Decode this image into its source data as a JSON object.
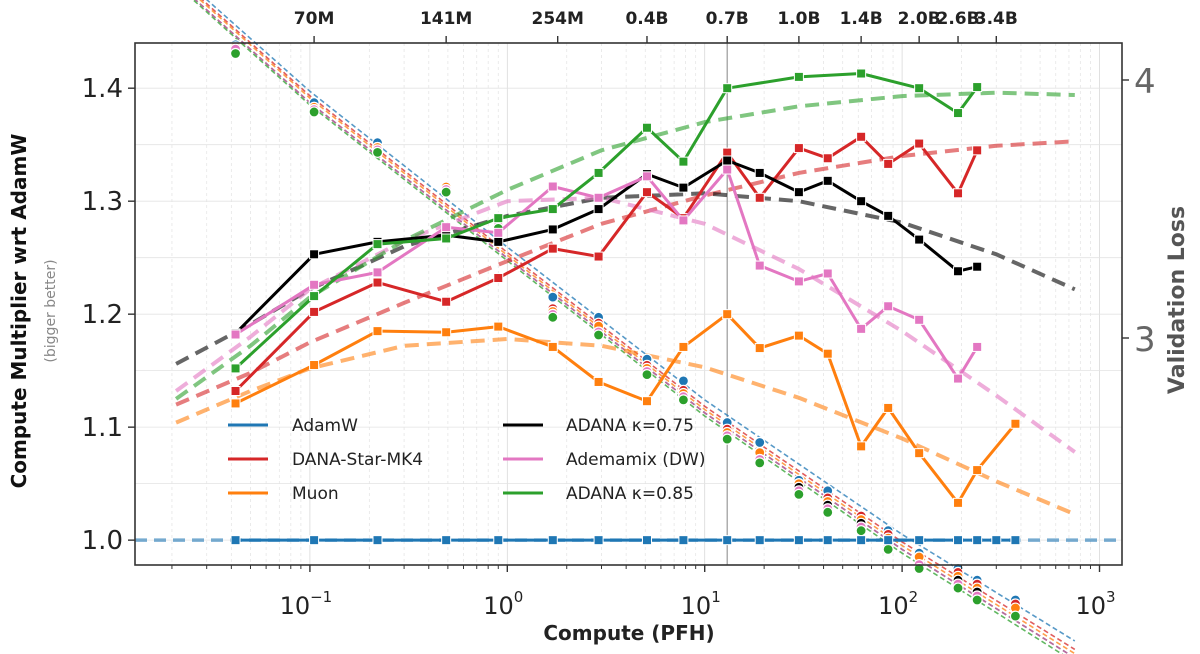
{
  "chart_data": {
    "type": "line",
    "x_scale": "log",
    "xlim": [
      0.013,
      1300
    ],
    "ylim_left": [
      0.978,
      1.44
    ],
    "ylim_right_desc": "log-scale validation loss, ticks 3 and 4",
    "xlabel": "Compute (PFH)",
    "ylabel_left": "Compute Multiplier wrt AdamW",
    "ylabel_left_sub": "(bigger better)",
    "ylabel_right": "Validation Loss",
    "x_ticks": [
      {
        "value": 0.1,
        "base": "10",
        "exp": "−1"
      },
      {
        "value": 1,
        "base": "10",
        "exp": "0"
      },
      {
        "value": 10,
        "base": "10",
        "exp": "1"
      },
      {
        "value": 100,
        "base": "10",
        "exp": "2"
      },
      {
        "value": 1000,
        "base": "10",
        "exp": "3"
      }
    ],
    "y_ticks_left": [
      "1.0",
      "1.1",
      "1.2",
      "1.3",
      "1.4"
    ],
    "y_ticks_right": [
      {
        "value": 3,
        "label": "3"
      },
      {
        "value": 4,
        "label": "4"
      }
    ],
    "top_axis_ticks": [
      {
        "x": 0.105,
        "label": "70M"
      },
      {
        "x": 0.49,
        "label": "141M"
      },
      {
        "x": 1.8,
        "label": "254M"
      },
      {
        "x": 5.1,
        "label": "0.4B"
      },
      {
        "x": 13,
        "label": "0.7B"
      },
      {
        "x": 30,
        "label": "1.0B"
      },
      {
        "x": 62,
        "label": "1.4B"
      },
      {
        "x": 122,
        "label": "2.0B"
      },
      {
        "x": 192,
        "label": "2.6B"
      },
      {
        "x": 300,
        "label": "3.4B"
      }
    ],
    "vline_x": 13,
    "hline_y": 1.0,
    "multiplier_series": [
      {
        "name": "AdamW",
        "color": "#1f77b4",
        "x": [
          0.042,
          0.105,
          0.22,
          0.49,
          0.9,
          1.7,
          2.9,
          5.1,
          7.8,
          13,
          19,
          30,
          42,
          62,
          85,
          122,
          192,
          240,
          300,
          375
        ],
        "y": [
          1.0,
          1.0,
          1.0,
          1.0,
          1.0,
          1.0,
          1.0,
          1.0,
          1.0,
          1.0,
          1.0,
          1.0,
          1.0,
          1.0,
          1.0,
          1.0,
          1.0,
          1.0,
          1.0,
          1.0
        ]
      },
      {
        "name": "DANA-Star-MK4",
        "color": "#d62728",
        "x": [
          0.042,
          0.105,
          0.22,
          0.49,
          0.9,
          1.7,
          2.9,
          5.1,
          7.8,
          13,
          19,
          30,
          42,
          62,
          85,
          122,
          192,
          240
        ],
        "y": [
          1.132,
          1.202,
          1.228,
          1.211,
          1.232,
          1.258,
          1.251,
          1.308,
          1.285,
          1.343,
          1.303,
          1.347,
          1.338,
          1.357,
          1.333,
          1.351,
          1.307,
          1.345
        ]
      },
      {
        "name": "Muon",
        "color": "#ff7f0e",
        "x": [
          0.042,
          0.105,
          0.22,
          0.49,
          0.9,
          1.7,
          2.9,
          5.1,
          7.8,
          13,
          19,
          30,
          42,
          62,
          85,
          122,
          192,
          240,
          375
        ],
        "y": [
          1.121,
          1.155,
          1.185,
          1.184,
          1.189,
          1.171,
          1.14,
          1.123,
          1.171,
          1.2,
          1.17,
          1.181,
          1.165,
          1.083,
          1.117,
          1.077,
          1.033,
          1.062,
          1.103
        ]
      },
      {
        "name": "ADANA κ=0.75",
        "color": "#000000",
        "x": [
          0.042,
          0.105,
          0.22,
          0.49,
          0.9,
          1.7,
          2.9,
          5.1,
          7.8,
          13,
          19,
          30,
          42,
          62,
          85,
          122,
          192,
          240
        ],
        "y": [
          1.183,
          1.253,
          1.264,
          1.27,
          1.264,
          1.275,
          1.293,
          1.324,
          1.312,
          1.336,
          1.325,
          1.308,
          1.318,
          1.3,
          1.287,
          1.266,
          1.238,
          1.242
        ]
      },
      {
        "name": "Ademamix (DW)",
        "color": "#e377c2",
        "x": [
          0.042,
          0.105,
          0.22,
          0.49,
          0.9,
          1.7,
          2.9,
          5.1,
          7.8,
          13,
          19,
          30,
          42,
          62,
          85,
          122,
          192,
          240
        ],
        "y": [
          1.182,
          1.226,
          1.237,
          1.277,
          1.272,
          1.313,
          1.303,
          1.322,
          1.283,
          1.328,
          1.243,
          1.229,
          1.236,
          1.187,
          1.207,
          1.195,
          1.143,
          1.171
        ]
      },
      {
        "name": "ADANA κ=0.85",
        "color": "#2ca02c",
        "x": [
          0.042,
          0.105,
          0.22,
          0.49,
          0.9,
          1.7,
          2.9,
          5.1,
          7.8,
          13,
          30,
          62,
          122,
          192,
          240
        ],
        "y": [
          1.152,
          1.216,
          1.262,
          1.267,
          1.285,
          1.293,
          1.325,
          1.365,
          1.335,
          1.4,
          1.41,
          1.413,
          1.4,
          1.378,
          1.401
        ]
      }
    ],
    "fit_series": [
      {
        "name": "DANA-Star-MK4 fit",
        "color": "#d62728",
        "x": [
          0.021,
          0.05,
          0.1,
          0.3,
          1,
          3,
          10,
          30,
          100,
          300,
          750
        ],
        "y": [
          1.12,
          1.148,
          1.175,
          1.21,
          1.247,
          1.28,
          1.305,
          1.325,
          1.34,
          1.349,
          1.353
        ]
      },
      {
        "name": "Muon fit",
        "color": "#ff7f0e",
        "x": [
          0.021,
          0.05,
          0.1,
          0.3,
          1,
          3,
          10,
          30,
          100,
          300,
          750
        ],
        "y": [
          1.104,
          1.132,
          1.152,
          1.172,
          1.178,
          1.172,
          1.153,
          1.126,
          1.09,
          1.052,
          1.023
        ]
      },
      {
        "name": "ADANA κ=0.75 fit",
        "color": "#000000",
        "x": [
          0.021,
          0.05,
          0.1,
          0.3,
          1,
          3,
          10,
          30,
          100,
          300,
          750
        ],
        "y": [
          1.156,
          1.191,
          1.222,
          1.26,
          1.287,
          1.303,
          1.307,
          1.3,
          1.281,
          1.253,
          1.222
        ]
      },
      {
        "name": "Ademamix (DW) fit",
        "color": "#e377c2",
        "x": [
          0.021,
          0.05,
          0.1,
          0.3,
          1,
          3,
          10,
          30,
          100,
          300,
          750
        ],
        "y": [
          1.132,
          1.18,
          1.222,
          1.265,
          1.3,
          1.303,
          1.28,
          1.24,
          1.185,
          1.128,
          1.078
        ]
      },
      {
        "name": "ADANA κ=0.85 fit",
        "color": "#2ca02c",
        "x": [
          0.021,
          0.05,
          0.1,
          0.3,
          1,
          3,
          10,
          30,
          100,
          300,
          750
        ],
        "y": [
          1.125,
          1.172,
          1.215,
          1.265,
          1.31,
          1.345,
          1.37,
          1.384,
          1.393,
          1.396,
          1.394
        ]
      }
    ],
    "loss_series": [
      {
        "name": "AdamW loss",
        "color": "#1f77b4",
        "x": [
          0.042,
          0.105,
          0.22,
          0.9,
          1.7,
          2.9,
          5.1,
          7.8,
          13,
          19,
          30,
          42,
          85,
          122,
          192,
          240,
          375
        ],
        "y": [
          4.16,
          3.9,
          3.73,
          3.43,
          3.14,
          3.07,
          2.93,
          2.86,
          2.73,
          2.67,
          2.56,
          2.53,
          2.42,
          2.36,
          2.32,
          2.29,
          2.24
        ]
      },
      {
        "name": "DANA-Star-MK4 loss",
        "color": "#d62728",
        "x": [
          0.042,
          0.105,
          0.22,
          0.49,
          0.9,
          1.7,
          2.9,
          5.1,
          7.8,
          13,
          19,
          30,
          42,
          62,
          85,
          122,
          192,
          240,
          375
        ],
        "y": [
          4.15,
          3.88,
          3.71,
          3.55,
          3.41,
          3.1,
          3.05,
          2.91,
          2.83,
          2.71,
          2.64,
          2.55,
          2.51,
          2.46,
          2.41,
          2.35,
          2.31,
          2.28,
          2.23
        ]
      },
      {
        "name": "Muon loss",
        "color": "#ff7f0e",
        "x": [
          0.042,
          0.105,
          0.22,
          0.49,
          0.9,
          1.7,
          2.9,
          5.1,
          7.8,
          13,
          19,
          30,
          42,
          62,
          85,
          122,
          192,
          240,
          375
        ],
        "y": [
          4.15,
          3.88,
          3.71,
          3.55,
          3.41,
          3.09,
          3.04,
          2.9,
          2.82,
          2.7,
          2.64,
          2.55,
          2.5,
          2.45,
          2.4,
          2.35,
          2.3,
          2.27,
          2.22
        ]
      },
      {
        "name": "ADANA κ=0.75 loss",
        "color": "#000000",
        "x": [
          0.042,
          0.105,
          0.22,
          0.49,
          0.9,
          1.7,
          2.9,
          5.1,
          7.8,
          13,
          19,
          30,
          42,
          62,
          85,
          122,
          192,
          240
        ],
        "y": [
          4.14,
          3.87,
          3.7,
          3.54,
          3.4,
          3.08,
          3.02,
          2.89,
          2.81,
          2.69,
          2.62,
          2.54,
          2.49,
          2.44,
          2.39,
          2.33,
          2.29,
          2.26
        ]
      },
      {
        "name": "Ademamix (DW) loss",
        "color": "#e377c2",
        "x": [
          0.042,
          0.105,
          0.22,
          0.49,
          0.9,
          1.7,
          2.9,
          5.1,
          7.8,
          13,
          19,
          30,
          42,
          62,
          85,
          122,
          192,
          240
        ],
        "y": [
          4.14,
          3.87,
          3.7,
          3.54,
          3.4,
          3.08,
          3.02,
          2.89,
          2.81,
          2.69,
          2.62,
          2.53,
          2.48,
          2.43,
          2.38,
          2.33,
          2.28,
          2.25
        ]
      },
      {
        "name": "ADANA κ=0.85 loss",
        "color": "#2ca02c",
        "x": [
          0.042,
          0.105,
          0.22,
          0.49,
          0.9,
          1.7,
          2.9,
          5.1,
          7.8,
          13,
          19,
          30,
          42,
          62,
          85,
          122,
          192,
          240,
          375
        ],
        "y": [
          4.12,
          3.86,
          3.69,
          3.53,
          3.39,
          3.07,
          3.01,
          2.88,
          2.8,
          2.68,
          2.61,
          2.52,
          2.47,
          2.42,
          2.37,
          2.32,
          2.27,
          2.24,
          2.2
        ]
      }
    ],
    "loss_fit_series": [
      {
        "name": "AdamW loss fit",
        "color": "#1f77b4",
        "x": [
          0.021,
          0.1,
          1,
          10,
          100,
          750
        ],
        "y": [
          4.51,
          3.95,
          3.32,
          2.8,
          2.41,
          2.14
        ]
      },
      {
        "name": "DANA-Star-MK4 loss fit",
        "color": "#d62728",
        "x": [
          0.021,
          0.1,
          1,
          10,
          100,
          750
        ],
        "y": [
          4.49,
          3.93,
          3.3,
          2.78,
          2.39,
          2.12
        ]
      },
      {
        "name": "Muon loss fit",
        "color": "#ff7f0e",
        "x": [
          0.021,
          0.1,
          1,
          10,
          100,
          750
        ],
        "y": [
          4.48,
          3.92,
          3.29,
          2.77,
          2.38,
          2.11
        ]
      },
      {
        "name": "ADANA κ=0.75 loss fit",
        "color": "#000000",
        "x": [
          0.021,
          0.1,
          1,
          10,
          100,
          750
        ],
        "y": [
          4.46,
          3.9,
          3.28,
          2.76,
          2.37,
          2.1
        ]
      },
      {
        "name": "Ademamix (DW) loss fit",
        "color": "#e377c2",
        "x": [
          0.021,
          0.1,
          1,
          10,
          100,
          750
        ],
        "y": [
          4.46,
          3.9,
          3.28,
          2.76,
          2.37,
          2.1
        ]
      },
      {
        "name": "ADANA κ=0.85 loss fit",
        "color": "#2ca02c",
        "x": [
          0.021,
          0.1,
          1,
          10,
          100,
          750
        ],
        "y": [
          4.45,
          3.89,
          3.27,
          2.75,
          2.36,
          2.09
        ]
      }
    ],
    "legend": {
      "position": "lower-left",
      "entries": [
        {
          "label": "AdamW",
          "color": "#1f77b4"
        },
        {
          "label": "DANA-Star-MK4",
          "color": "#d62728"
        },
        {
          "label": "Muon",
          "color": "#ff7f0e"
        },
        {
          "label": "ADANA κ=0.75",
          "color": "#000000"
        },
        {
          "label": "Ademamix (DW)",
          "color": "#e377c2"
        },
        {
          "label": "ADANA κ=0.85",
          "color": "#2ca02c"
        }
      ]
    }
  }
}
